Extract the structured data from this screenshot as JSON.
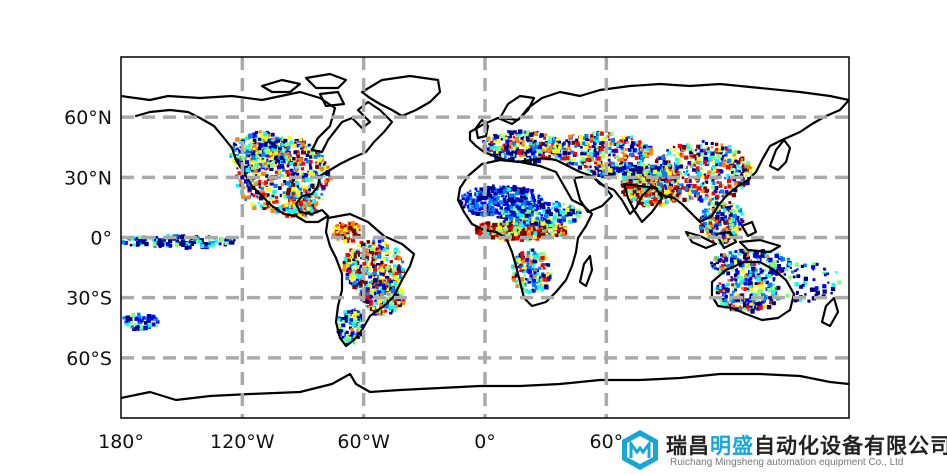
{
  "axes": {
    "lat_ticks": [
      {
        "value": 60,
        "label": "60°N"
      },
      {
        "value": 30,
        "label": "30°N"
      },
      {
        "value": 0,
        "label": "0°"
      },
      {
        "value": -30,
        "label": "30°S"
      },
      {
        "value": -60,
        "label": "60°S"
      }
    ],
    "lon_ticks": [
      {
        "value": -180,
        "label": "180°"
      },
      {
        "value": -120,
        "label": "120°W"
      },
      {
        "value": -60,
        "label": "60°W"
      },
      {
        "value": 0,
        "label": "0°"
      },
      {
        "value": 60,
        "label": "60°"
      }
    ],
    "lon_range": [
      -180,
      180
    ],
    "lat_range": [
      -90,
      90
    ],
    "grid": "dashed",
    "grid_color": "#aaaaaa"
  },
  "projection": "plate-carree",
  "colormap": [
    "#000080",
    "#0000ff",
    "#0080ff",
    "#00ffff",
    "#80ff80",
    "#ffff00",
    "#ff8000",
    "#ff0000",
    "#800000"
  ],
  "watermark": {
    "title_prefix": "瑞昌",
    "title_highlight": "明盛",
    "title_suffix": "自动化设备有限公司",
    "subtitle": "Ruichang Mingsheng automation equipment Co., Ltd",
    "brand_color": "#17a6d6"
  }
}
